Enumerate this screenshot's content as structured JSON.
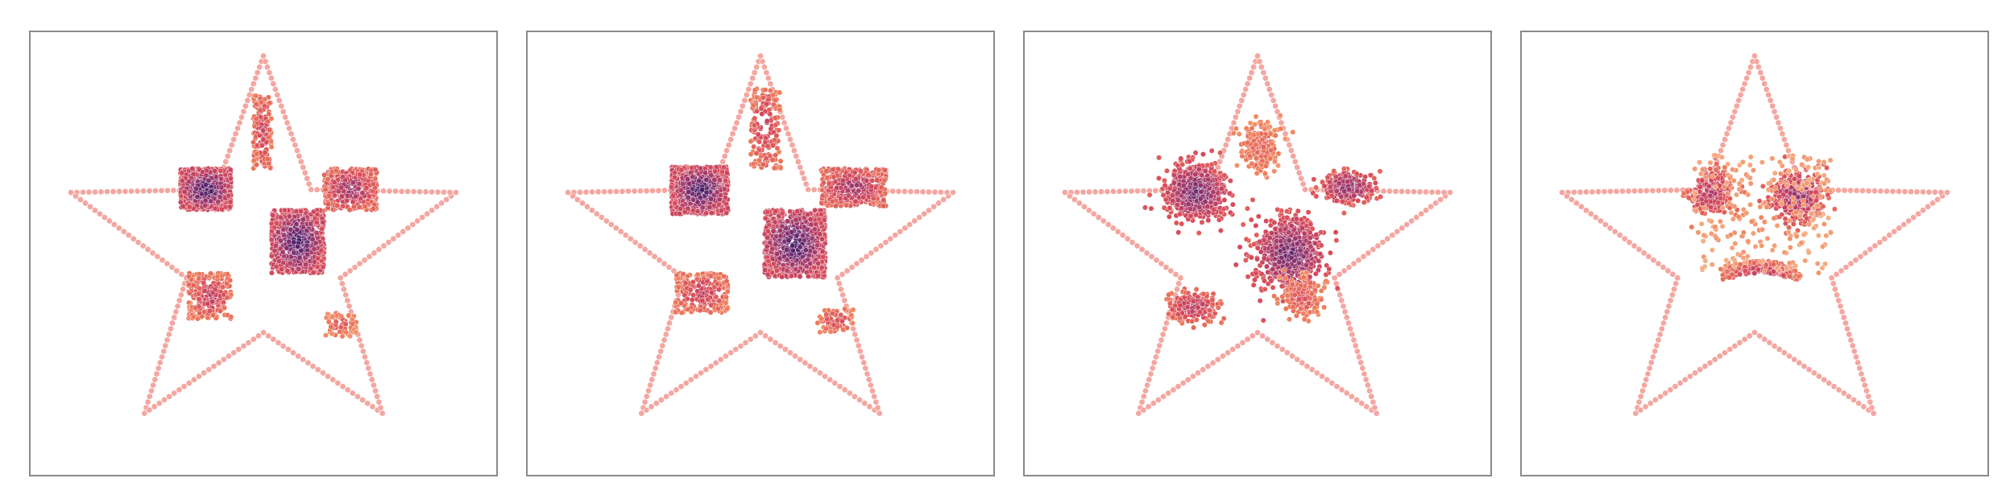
{
  "figure": {
    "panel_count": 4,
    "background": "#ffffff",
    "frame_color": "#8a8a8a"
  },
  "chart_data": [
    {
      "type": "scatter",
      "panel": 1,
      "title": "",
      "xlabel": "",
      "ylabel": "",
      "grid": false,
      "legend": "none",
      "xlim": [
        -1.15,
        1.15
      ],
      "ylim": [
        -1.12,
        1.12
      ],
      "boundary": {
        "shape": "five-point star",
        "outer_radius": 1.0,
        "inner_radius": 0.4,
        "point_count": 240,
        "color": "#f4a6a0"
      },
      "colormap": [
        "#f7b58a",
        "#ee7d5a",
        "#d84b5a",
        "#a53a6b",
        "#6c2b72",
        "#33195c"
      ],
      "clusters": [
        {
          "label": "square",
          "x_range": [
            -0.41,
            -0.16
          ],
          "y_range": [
            0.22,
            0.43
          ],
          "count": 900,
          "density": 1.0
        },
        {
          "label": "square",
          "x_range": [
            0.04,
            0.3
          ],
          "y_range": [
            -0.1,
            0.22
          ],
          "count": 900,
          "density": 1.0
        },
        {
          "label": "square",
          "x_range": [
            0.3,
            0.56
          ],
          "y_range": [
            0.22,
            0.43
          ],
          "count": 420,
          "density": 0.7
        },
        {
          "label": "square",
          "x_range": [
            -0.05,
            0.04
          ],
          "y_range": [
            0.43,
            0.8
          ],
          "count": 160,
          "density": 0.55
        },
        {
          "label": "square",
          "x_range": [
            -0.37,
            -0.16
          ],
          "y_range": [
            -0.33,
            -0.1
          ],
          "count": 230,
          "density": 0.55
        },
        {
          "label": "square",
          "x_range": [
            0.3,
            0.46
          ],
          "y_range": [
            -0.42,
            -0.3
          ],
          "count": 60,
          "density": 0.4
        }
      ]
    },
    {
      "type": "scatter",
      "panel": 2,
      "title": "",
      "xlabel": "",
      "ylabel": "",
      "grid": false,
      "legend": "none",
      "xlim": [
        -1.15,
        1.15
      ],
      "ylim": [
        -1.12,
        1.12
      ],
      "boundary": {
        "shape": "five-point star",
        "outer_radius": 1.0,
        "inner_radius": 0.4,
        "point_count": 240,
        "color": "#f4a6a0"
      },
      "colormap": [
        "#f7b58a",
        "#ee7d5a",
        "#d84b5a",
        "#a53a6b",
        "#6c2b72",
        "#33195c"
      ],
      "clusters": [
        {
          "label": "square",
          "x_range": [
            -0.44,
            -0.16
          ],
          "y_range": [
            0.2,
            0.44
          ],
          "count": 900,
          "density": 1.0
        },
        {
          "label": "square",
          "x_range": [
            0.02,
            0.32
          ],
          "y_range": [
            -0.12,
            0.22
          ],
          "count": 900,
          "density": 1.0
        },
        {
          "label": "square",
          "x_range": [
            0.3,
            0.62
          ],
          "y_range": [
            0.24,
            0.43
          ],
          "count": 380,
          "density": 0.7
        },
        {
          "label": "square",
          "x_range": [
            -0.05,
            0.1
          ],
          "y_range": [
            0.43,
            0.84
          ],
          "count": 170,
          "density": 0.55
        },
        {
          "label": "square",
          "x_range": [
            -0.42,
            -0.16
          ],
          "y_range": [
            -0.3,
            -0.1
          ],
          "count": 230,
          "density": 0.55
        },
        {
          "label": "square",
          "x_range": [
            0.28,
            0.46
          ],
          "y_range": [
            -0.4,
            -0.28
          ],
          "count": 80,
          "density": 0.45
        }
      ]
    },
    {
      "type": "scatter",
      "panel": 3,
      "title": "",
      "xlabel": "",
      "ylabel": "",
      "grid": false,
      "legend": "none",
      "xlim": [
        -1.15,
        1.15
      ],
      "ylim": [
        -1.12,
        1.12
      ],
      "boundary": {
        "shape": "five-point star",
        "outer_radius": 1.0,
        "inner_radius": 0.4,
        "point_count": 240,
        "color": "#f4a6a0"
      },
      "colormap": [
        "#f7b58a",
        "#ee7d5a",
        "#d84b5a",
        "#a53a6b",
        "#6c2b72",
        "#33195c"
      ],
      "clusters": [
        {
          "label": "blob",
          "x_range": [
            -0.47,
            -0.14
          ],
          "y_range": [
            0.16,
            0.46
          ],
          "count": 850,
          "density": 0.85
        },
        {
          "label": "blob",
          "x_range": [
            -0.02,
            0.34
          ],
          "y_range": [
            -0.2,
            0.2
          ],
          "count": 800,
          "density": 0.85
        },
        {
          "label": "blob",
          "x_range": [
            0.3,
            0.6
          ],
          "y_range": [
            0.24,
            0.43
          ],
          "count": 300,
          "density": 0.75
        },
        {
          "label": "blob",
          "x_range": [
            -0.1,
            0.12
          ],
          "y_range": [
            0.38,
            0.68
          ],
          "count": 220,
          "density": 0.35
        },
        {
          "label": "blob",
          "x_range": [
            -0.46,
            -0.18
          ],
          "y_range": [
            -0.36,
            -0.18
          ],
          "count": 260,
          "density": 0.6
        },
        {
          "label": "blob",
          "x_range": [
            0.1,
            0.34
          ],
          "y_range": [
            -0.34,
            -0.1
          ],
          "count": 200,
          "density": 0.4
        }
      ]
    },
    {
      "type": "scatter",
      "panel": 4,
      "title": "",
      "xlabel": "",
      "ylabel": "",
      "grid": false,
      "legend": "none",
      "xlim": [
        -1.15,
        1.15
      ],
      "ylim": [
        -1.12,
        1.12
      ],
      "boundary": {
        "shape": "five-point star",
        "outer_radius": 1.0,
        "inner_radius": 0.4,
        "point_count": 240,
        "color": "#f4a6a0"
      },
      "colormap": [
        "#f7b58a",
        "#ee7d5a",
        "#d84b5a",
        "#a53a6b",
        "#6c2b72",
        "#33195c"
      ],
      "clusters": [
        {
          "label": "blob",
          "x_range": [
            -0.35,
            -0.08
          ],
          "y_range": [
            0.18,
            0.44
          ],
          "count": 260,
          "density": 0.6
        },
        {
          "label": "blob",
          "x_range": [
            0.06,
            0.37
          ],
          "y_range": [
            0.14,
            0.44
          ],
          "count": 300,
          "density": 0.7
        },
        {
          "label": "arc",
          "x_range": [
            -0.16,
            0.22
          ],
          "y_range": [
            -0.18,
            -0.04
          ],
          "count": 220,
          "density": 0.6
        },
        {
          "label": "halo",
          "x_range": [
            -0.3,
            0.38
          ],
          "y_range": [
            -0.1,
            0.5
          ],
          "count": 240,
          "density": 0.15
        }
      ]
    }
  ]
}
